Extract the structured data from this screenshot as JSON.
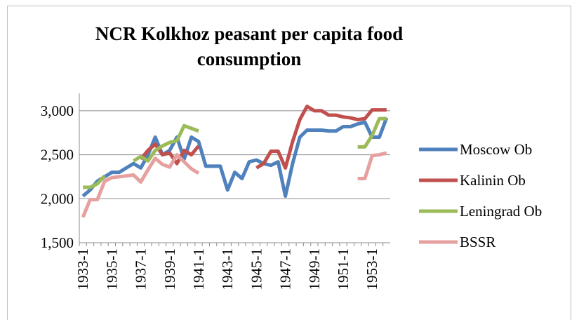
{
  "chart_data": {
    "type": "line",
    "title": "NCR Kolkhoz peasant per capita food consumption",
    "categories": [
      "1933-1",
      null,
      null,
      null,
      "1935-1",
      null,
      null,
      null,
      "1937-1",
      null,
      null,
      null,
      "1939-1",
      null,
      null,
      null,
      "1941-1",
      null,
      null,
      null,
      "1943-1",
      null,
      null,
      null,
      "1945-1",
      null,
      null,
      null,
      "1947-1",
      null,
      null,
      null,
      "1949-1",
      null,
      null,
      null,
      "1951-1",
      null,
      null,
      null,
      "1953-1",
      null,
      null
    ],
    "series": [
      {
        "name": "Moscow Ob",
        "color": "#4f81bd",
        "values": [
          2030,
          2100,
          2200,
          2250,
          2300,
          2300,
          2350,
          2400,
          2350,
          2500,
          2700,
          2500,
          2550,
          2700,
          2450,
          2700,
          2650,
          2370,
          2370,
          2370,
          2100,
          2300,
          2230,
          2420,
          2440,
          2400,
          2380,
          2420,
          2030,
          2400,
          2700,
          2780,
          2780,
          2780,
          2770,
          2770,
          2820,
          2820,
          2850,
          2870,
          2700,
          2700,
          2920
        ]
      },
      {
        "name": "Kalinin Ob",
        "color": "#c0504d",
        "values": [
          null,
          null,
          null,
          null,
          null,
          null,
          null,
          null,
          2450,
          2550,
          2620,
          2500,
          2520,
          2400,
          2550,
          2500,
          2600,
          null,
          null,
          null,
          null,
          null,
          null,
          null,
          2350,
          2400,
          2540,
          2540,
          2350,
          2650,
          2900,
          3050,
          3000,
          3000,
          2950,
          2950,
          2930,
          2920,
          2900,
          2910,
          3010,
          3010,
          3010
        ]
      },
      {
        "name": "Leningrad Ob",
        "color": "#9bbb59",
        "values": [
          2130,
          2130,
          2170,
          2260,
          null,
          null,
          null,
          2430,
          2480,
          2430,
          2550,
          2600,
          2640,
          2660,
          2830,
          2800,
          2770,
          null,
          null,
          null,
          null,
          null,
          null,
          null,
          null,
          null,
          null,
          null,
          null,
          null,
          null,
          null,
          null,
          null,
          null,
          null,
          null,
          null,
          2590,
          2590,
          2720,
          2910,
          2910
        ]
      },
      {
        "name": "BSSR",
        "color": "#e6a0a0",
        "values": [
          1790,
          1990,
          1990,
          2200,
          2240,
          2250,
          2260,
          2270,
          2190,
          2330,
          2460,
          2390,
          2360,
          2500,
          2420,
          2340,
          2290,
          null,
          null,
          null,
          null,
          null,
          null,
          null,
          null,
          null,
          null,
          null,
          null,
          null,
          null,
          null,
          null,
          null,
          null,
          null,
          null,
          null,
          2230,
          2230,
          2490,
          2500,
          2520
        ]
      }
    ],
    "ylim": [
      1500,
      3200
    ],
    "yticks": [
      {
        "value": 1500,
        "label": "1,500"
      },
      {
        "value": 2000,
        "label": "2,000"
      },
      {
        "value": 2500,
        "label": "2,500"
      },
      {
        "value": 3000,
        "label": "3,000"
      }
    ],
    "grid": true,
    "legend": "right"
  }
}
